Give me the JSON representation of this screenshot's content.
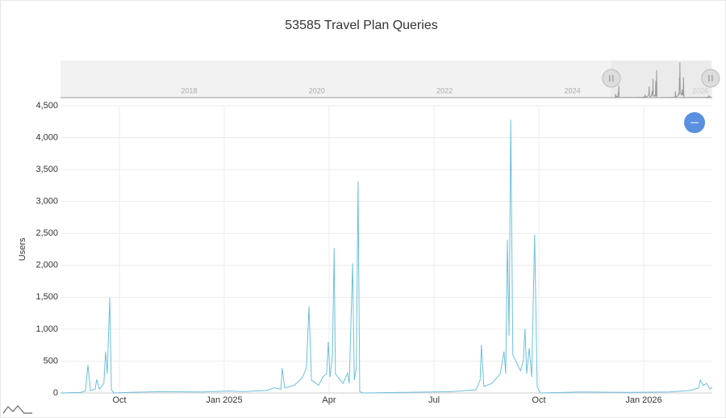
{
  "chart_data": {
    "type": "line",
    "title": "53585 Travel Plan Queries",
    "y_label": "Users",
    "color": "#6cc0dc",
    "grid": true,
    "x": [
      2024.61,
      2024.658,
      2024.669,
      2024.675,
      2024.681,
      2024.692,
      2024.696,
      2024.702,
      2024.713,
      2024.717,
      2024.721,
      2024.727,
      2024.731,
      2024.737,
      2024.773,
      2024.85,
      2024.946,
      2025.013,
      2025.042,
      2025.1,
      2025.119,
      2025.135,
      2025.138,
      2025.144,
      2025.167,
      2025.187,
      2025.196,
      2025.202,
      2025.208,
      2025.225,
      2025.235,
      2025.244,
      2025.248,
      2025.252,
      2025.258,
      2025.262,
      2025.265,
      2025.283,
      2025.294,
      2025.298,
      2025.306,
      2025.31,
      2025.315,
      2025.319,
      2025.323,
      2025.331,
      2025.427,
      2025.542,
      2025.6,
      2025.61,
      2025.613,
      2025.619,
      2025.638,
      2025.658,
      2025.667,
      2025.671,
      2025.675,
      2025.679,
      2025.683,
      2025.688,
      2025.706,
      2025.713,
      2025.717,
      2025.721,
      2025.727,
      2025.733,
      2025.74,
      2025.746,
      2025.754,
      2025.85,
      2025.965,
      2026.062,
      2026.11,
      2026.131,
      2026.135,
      2026.142,
      2026.15,
      2026.158,
      2026.163
    ],
    "values": [
      0,
      10,
      30,
      440,
      40,
      60,
      210,
      60,
      150,
      650,
      300,
      1490,
      50,
      0,
      10,
      20,
      15,
      30,
      20,
      40,
      80,
      60,
      390,
      80,
      120,
      250,
      400,
      1360,
      200,
      120,
      250,
      300,
      800,
      250,
      600,
      2270,
      300,
      150,
      310,
      150,
      2030,
      200,
      400,
      3320,
      20,
      0,
      10,
      20,
      50,
      200,
      750,
      100,
      150,
      300,
      650,
      300,
      2400,
      900,
      4280,
      600,
      350,
      500,
      1010,
      300,
      700,
      250,
      2480,
      100,
      0,
      15,
      10,
      15,
      40,
      80,
      200,
      120,
      150,
      60,
      90
    ],
    "xlim": [
      2024.6096,
      2026.1635
    ],
    "xticks": [
      {
        "value": 2024.75,
        "label": "Oct"
      },
      {
        "value": 2025,
        "label": "Jan 2025"
      },
      {
        "value": 2025.25,
        "label": "Apr"
      },
      {
        "value": 2025.5,
        "label": "Jul"
      },
      {
        "value": 2025.75,
        "label": "Oct"
      },
      {
        "value": 2026,
        "label": "Jan 2026"
      }
    ],
    "ylim": [
      0,
      4500
    ],
    "yticks": [
      0,
      500,
      {
        "value": 1000,
        "label": "1,000"
      },
      {
        "value": 1500,
        "label": "1,500"
      },
      {
        "value": 2000,
        "label": "2,000"
      },
      {
        "value": 2500,
        "label": "2,500"
      },
      {
        "value": 3000,
        "label": "3,000"
      },
      {
        "value": 3500,
        "label": "3,500"
      },
      {
        "value": 4000,
        "label": "4,000"
      },
      {
        "value": 4500,
        "label": "4,500"
      }
    ],
    "navigator": {
      "color": "#999999",
      "xlim": [
        2015.987,
        2026.19
      ],
      "xticks": [
        2018,
        2020,
        2022,
        2024,
        2026
      ]
    }
  }
}
